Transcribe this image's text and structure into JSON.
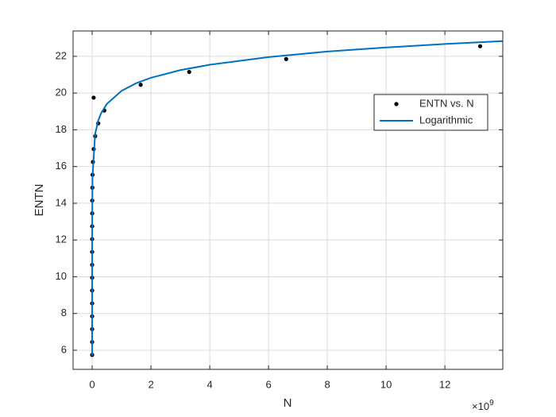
{
  "chart_data": {
    "type": "scatter",
    "xlabel": "N",
    "ylabel": "ENTN",
    "x_exponent": {
      "base": "×10",
      "power": "9"
    },
    "xlim": [
      -650000000,
      13970000000
    ],
    "ylim": [
      4.96,
      23.38
    ],
    "xticks": [
      0,
      {
        "value": 2000000000,
        "label": "2"
      },
      {
        "value": 4000000000,
        "label": "4"
      },
      {
        "value": 6000000000,
        "label": "6"
      },
      {
        "value": 8000000000,
        "label": "8"
      },
      {
        "value": 10000000000,
        "label": "10"
      },
      {
        "value": 12000000000,
        "label": "12"
      }
    ],
    "yticks": [
      6,
      8,
      10,
      12,
      14,
      16,
      18,
      20,
      22
    ],
    "grid": true,
    "legend": "east",
    "series": [
      {
        "name": "ENTN vs. N",
        "type": "scatter",
        "color": "#000000",
        "x": [
          13200000000,
          6600000000,
          3300000000,
          1650000000,
          50000000,
          412500000,
          206250000,
          103125000,
          51562500,
          25781250,
          12890625,
          6445312,
          3222656,
          1611328,
          805664,
          402832,
          201416,
          100708,
          50354,
          25177,
          12589,
          6294,
          3147,
          1574,
          787
        ],
        "values": [
          22.55,
          21.85,
          21.15,
          20.45,
          19.75,
          19.05,
          18.35,
          17.65,
          16.95,
          16.25,
          15.55,
          14.85,
          14.15,
          13.45,
          12.75,
          12.05,
          11.35,
          10.65,
          9.95,
          9.25,
          8.55,
          7.85,
          7.15,
          6.45,
          5.75
        ]
      },
      {
        "name": "Logarithmic",
        "type": "line",
        "color": "#0072BD",
        "x": [
          787,
          10000,
          100000,
          1000000,
          10000000,
          100000000,
          200000000,
          300000000,
          500000000,
          1000000000,
          1500000000,
          2000000000,
          3000000000,
          4000000000,
          6000000000,
          8000000000,
          10000000000,
          12000000000,
          13970000000
        ],
        "values": [
          5.7,
          8.31,
          10.67,
          13.03,
          15.4,
          17.76,
          18.47,
          18.89,
          19.41,
          20.12,
          20.54,
          20.83,
          21.25,
          21.54,
          21.96,
          22.26,
          22.48,
          22.67,
          22.83
        ]
      }
    ]
  }
}
